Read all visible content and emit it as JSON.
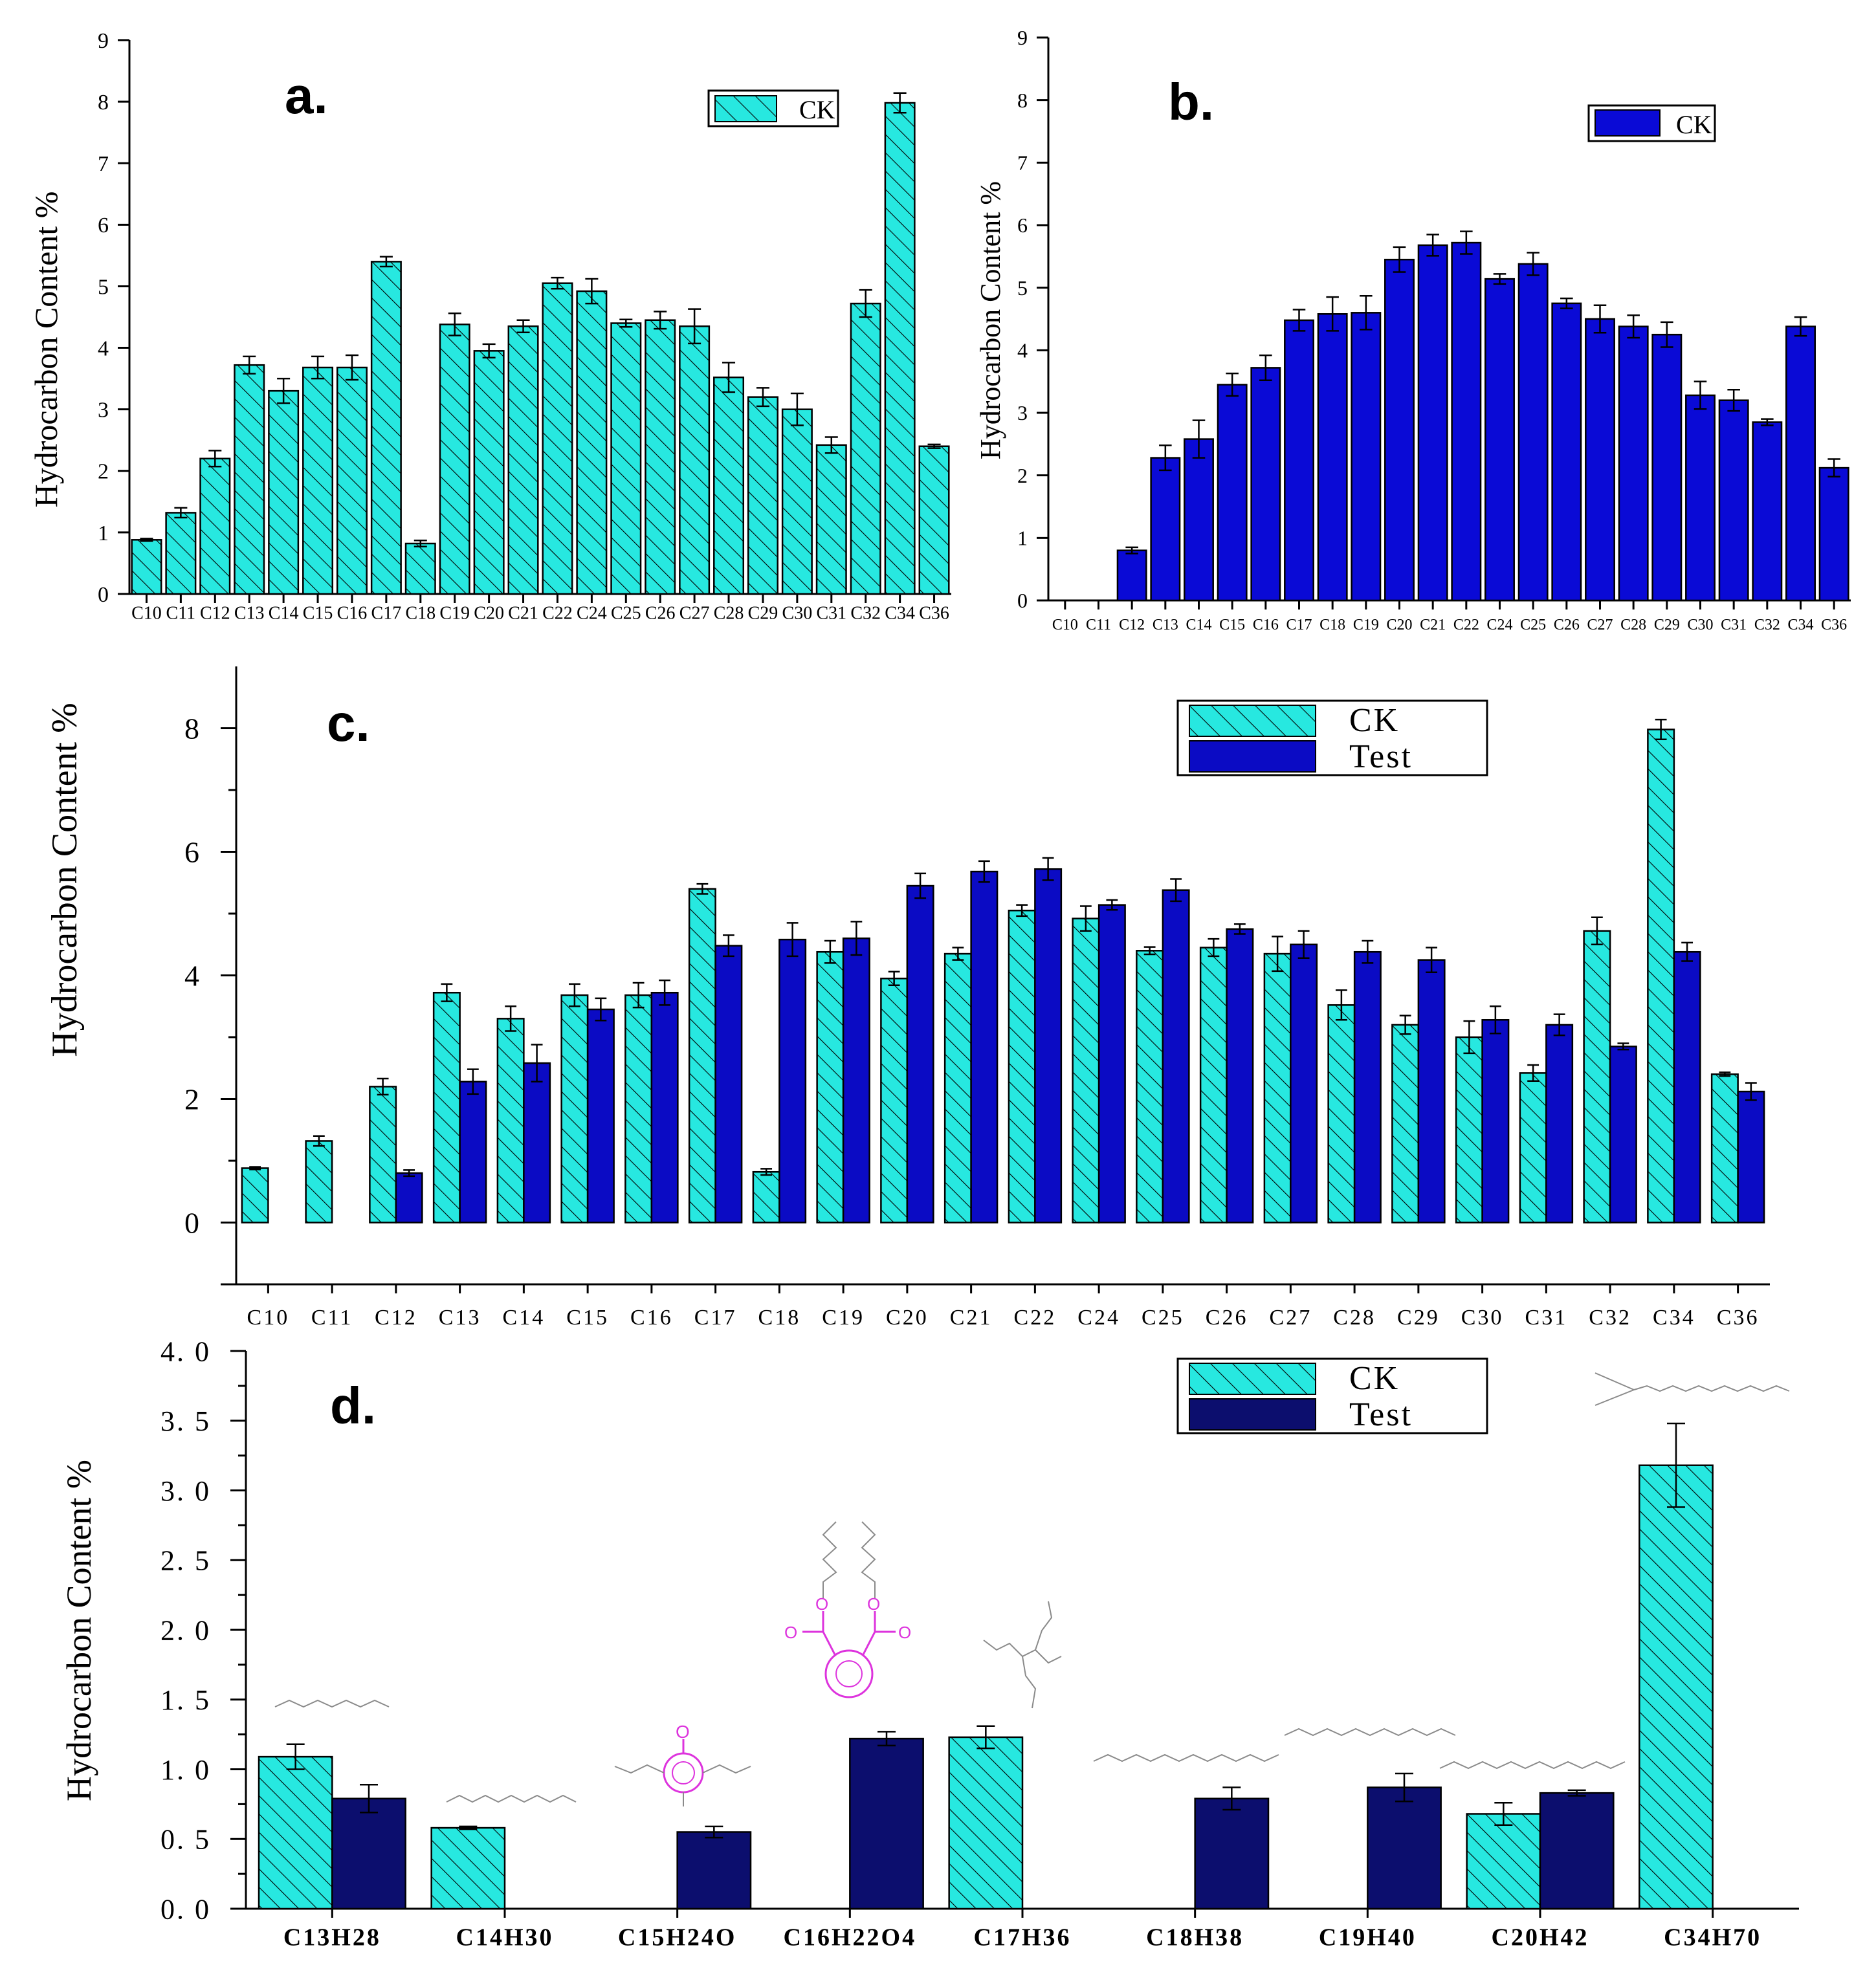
{
  "colors": {
    "ck": "#27e8e0",
    "test_b": "#0a0ad6",
    "test_c": "#0b0bc4",
    "test_d": "#0c0e6e",
    "axis": "#000000",
    "hatch": "#000000",
    "structure_gray": "#8a8a8a",
    "structure_magenta": "#dd33dd"
  },
  "chart_data": [
    {
      "id": "a",
      "panel_label": "a.",
      "type": "bar",
      "ylabel": "Hydrocarbon Content %",
      "ylim": [
        0,
        9
      ],
      "yticks": [
        0,
        1,
        2,
        3,
        4,
        5,
        6,
        7,
        8,
        9
      ],
      "ytick_labels": [
        "0",
        "1",
        "2",
        "3",
        "4",
        "5",
        "6",
        "7",
        "8",
        "9"
      ],
      "categories": [
        "C10",
        "C11",
        "C12",
        "C13",
        "C14",
        "C15",
        "C16",
        "C17",
        "C18",
        "C19",
        "C20",
        "C21",
        "C22",
        "C24",
        "C25",
        "C26",
        "C27",
        "C28",
        "C29",
        "C30",
        "C31",
        "C32",
        "C34",
        "C36"
      ],
      "legend": [
        "CK"
      ],
      "series": [
        {
          "name": "CK",
          "values": [
            0.88,
            1.32,
            2.2,
            3.72,
            3.3,
            3.68,
            3.68,
            5.4,
            0.82,
            4.38,
            3.95,
            4.35,
            5.05,
            4.92,
            4.4,
            4.45,
            4.35,
            3.52,
            3.2,
            3.0,
            2.42,
            4.72,
            7.98,
            2.4
          ],
          "errors": [
            0.02,
            0.08,
            0.13,
            0.14,
            0.2,
            0.18,
            0.2,
            0.08,
            0.05,
            0.18,
            0.11,
            0.1,
            0.09,
            0.2,
            0.06,
            0.14,
            0.28,
            0.24,
            0.15,
            0.26,
            0.13,
            0.22,
            0.16,
            0.03
          ]
        }
      ]
    },
    {
      "id": "b",
      "panel_label": "b.",
      "type": "bar",
      "ylabel": "Hydrocarbon Content %",
      "ylim": [
        0,
        9
      ],
      "yticks": [
        0,
        1,
        2,
        3,
        4,
        5,
        6,
        7,
        8,
        9
      ],
      "ytick_labels": [
        "0",
        "1",
        "2",
        "3",
        "4",
        "5",
        "6",
        "7",
        "8",
        "9"
      ],
      "categories": [
        "C10",
        "C11",
        "C12",
        "C13",
        "C14",
        "C15",
        "C16",
        "C17",
        "C18",
        "C19",
        "C20",
        "C21",
        "C22",
        "C24",
        "C25",
        "C26",
        "C27",
        "C28",
        "C29",
        "C30",
        "C31",
        "C32",
        "C34",
        "C36"
      ],
      "legend": [
        "CK"
      ],
      "series": [
        {
          "name": "CK",
          "values": [
            0,
            0,
            0.8,
            2.28,
            2.58,
            3.45,
            3.72,
            4.48,
            4.58,
            4.6,
            5.45,
            5.68,
            5.72,
            5.14,
            5.38,
            4.75,
            4.5,
            4.38,
            4.25,
            3.28,
            3.2,
            2.85,
            4.38,
            2.12
          ],
          "errors": [
            0,
            0,
            0.05,
            0.2,
            0.3,
            0.18,
            0.2,
            0.17,
            0.27,
            0.27,
            0.2,
            0.17,
            0.18,
            0.08,
            0.18,
            0.08,
            0.22,
            0.18,
            0.2,
            0.22,
            0.17,
            0.05,
            0.15,
            0.14
          ]
        }
      ]
    },
    {
      "id": "c",
      "panel_label": "c.",
      "type": "bar",
      "ylabel": "Hydrocarbon Content %",
      "ylim": [
        -1,
        9
      ],
      "yticks": [
        0,
        2,
        4,
        6,
        8
      ],
      "ytick_labels": [
        "0",
        "2",
        "4",
        "6",
        "8"
      ],
      "categories": [
        "C10",
        "C11",
        "C12",
        "C13",
        "C14",
        "C15",
        "C16",
        "C17",
        "C18",
        "C19",
        "C20",
        "C21",
        "C22",
        "C24",
        "C25",
        "C26",
        "C27",
        "C28",
        "C29",
        "C30",
        "C31",
        "C32",
        "C34",
        "C36"
      ],
      "legend": [
        "CK",
        "Test"
      ],
      "series": [
        {
          "name": "CK",
          "values": [
            0.88,
            1.32,
            2.2,
            3.72,
            3.3,
            3.68,
            3.68,
            5.4,
            0.82,
            4.38,
            3.95,
            4.35,
            5.05,
            4.92,
            4.4,
            4.45,
            4.35,
            3.52,
            3.2,
            3.0,
            2.42,
            4.72,
            7.98,
            2.4
          ],
          "errors": [
            0.02,
            0.08,
            0.13,
            0.14,
            0.2,
            0.18,
            0.2,
            0.08,
            0.05,
            0.18,
            0.11,
            0.1,
            0.09,
            0.2,
            0.06,
            0.14,
            0.28,
            0.24,
            0.15,
            0.26,
            0.13,
            0.22,
            0.16,
            0.03
          ]
        },
        {
          "name": "Test",
          "values": [
            0,
            0,
            0.8,
            2.28,
            2.58,
            3.45,
            3.72,
            4.48,
            4.58,
            4.6,
            5.45,
            5.68,
            5.72,
            5.14,
            5.38,
            4.75,
            4.5,
            4.38,
            4.25,
            3.28,
            3.2,
            2.85,
            4.38,
            2.12
          ],
          "errors": [
            0,
            0,
            0.05,
            0.2,
            0.3,
            0.18,
            0.2,
            0.17,
            0.27,
            0.27,
            0.2,
            0.17,
            0.18,
            0.08,
            0.18,
            0.08,
            0.22,
            0.18,
            0.2,
            0.22,
            0.17,
            0.05,
            0.15,
            0.14
          ]
        }
      ]
    },
    {
      "id": "d",
      "panel_label": "d.",
      "type": "bar",
      "ylabel": "Hydrocarbon Content %",
      "ylim": [
        0,
        4
      ],
      "yticks": [
        0,
        0.5,
        1,
        1.5,
        2,
        2.5,
        3,
        3.5,
        4
      ],
      "ytick_labels": [
        "0. 0",
        "0. 5",
        "1. 0",
        "1. 5",
        "2. 0",
        "2. 5",
        "3. 0",
        "3. 5",
        "4. 0"
      ],
      "categories": [
        "C13H28",
        "C14H30",
        "C15H24O",
        "C16H22O4",
        "C17H36",
        "C18H38",
        "C19H40",
        "C20H42",
        "C34H70"
      ],
      "legend": [
        "CK",
        "Test"
      ],
      "series": [
        {
          "name": "CK",
          "values": [
            1.09,
            0.58,
            0,
            0,
            1.23,
            0,
            0,
            0.68,
            3.18
          ],
          "errors": [
            0.09,
            0.01,
            0,
            0,
            0.08,
            0,
            0,
            0.08,
            0.3
          ]
        },
        {
          "name": "Test",
          "values": [
            0.79,
            0,
            0.55,
            1.22,
            0,
            0.79,
            0.87,
            0.83,
            0
          ],
          "errors": [
            0.1,
            0,
            0.04,
            0.05,
            0,
            0.08,
            0.1,
            0.02,
            0
          ]
        }
      ],
      "structure_atoms": [
        "O",
        "O",
        "O",
        "O",
        "O"
      ]
    }
  ]
}
